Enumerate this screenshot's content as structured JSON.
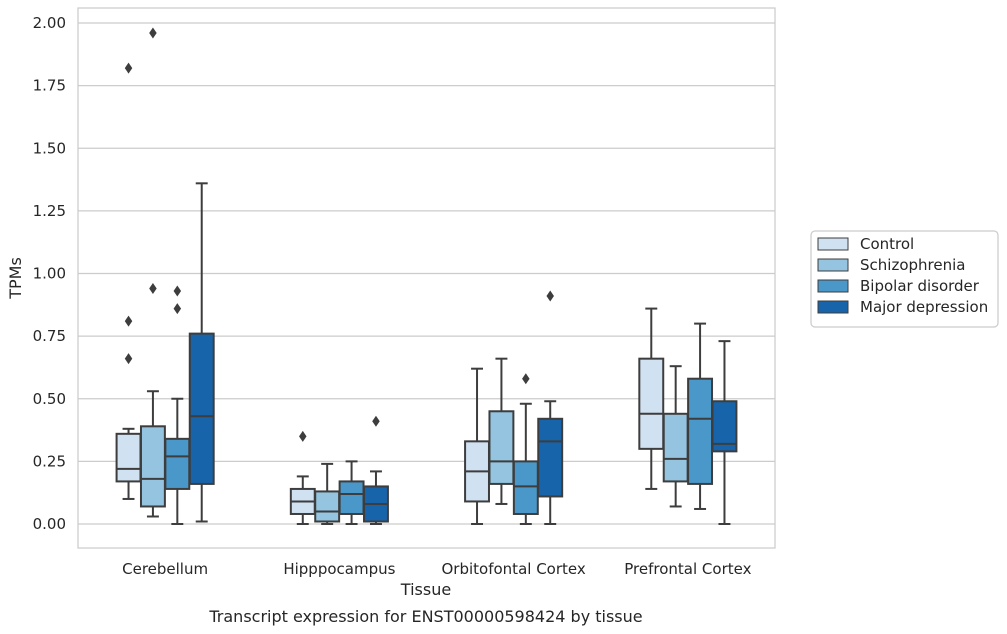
{
  "chart_data": {
    "type": "box",
    "title": "",
    "caption": "Transcript expression for ENST00000598424 by tissue",
    "xlabel": "Tissue",
    "ylabel": "TPMs",
    "ylim": [
      -0.095,
      2.06
    ],
    "yticks": [
      0.0,
      0.25,
      0.5,
      0.75,
      1.0,
      1.25,
      1.5,
      1.75,
      2.0
    ],
    "ytick_labels": [
      "0.00",
      "0.25",
      "0.50",
      "0.75",
      "1.00",
      "1.25",
      "1.50",
      "1.75",
      "2.00"
    ],
    "grid": true,
    "legend_position": "right",
    "categories": [
      "Cerebellum",
      "Hipppocampus",
      "Orbitofontal Cortex",
      "Prefrontal Cortex"
    ],
    "series": [
      {
        "name": "Control",
        "color": "#d0e1f2",
        "boxes": [
          {
            "whislo": 0.1,
            "q1": 0.17,
            "med": 0.22,
            "q3": 0.36,
            "whishi": 0.38,
            "fliers": [
              0.66,
              0.81,
              1.82
            ]
          },
          {
            "whislo": 0.0,
            "q1": 0.04,
            "med": 0.09,
            "q3": 0.14,
            "whishi": 0.19,
            "fliers": [
              0.35
            ]
          },
          {
            "whislo": 0.0,
            "q1": 0.09,
            "med": 0.21,
            "q3": 0.33,
            "whishi": 0.62,
            "fliers": []
          },
          {
            "whislo": 0.14,
            "q1": 0.3,
            "med": 0.44,
            "q3": 0.66,
            "whishi": 0.86,
            "fliers": []
          }
        ]
      },
      {
        "name": "Schizophrenia",
        "color": "#94c4df",
        "boxes": [
          {
            "whislo": 0.03,
            "q1": 0.07,
            "med": 0.18,
            "q3": 0.39,
            "whishi": 0.53,
            "fliers": [
              0.94,
              1.96
            ]
          },
          {
            "whislo": 0.0,
            "q1": 0.01,
            "med": 0.05,
            "q3": 0.13,
            "whishi": 0.24,
            "fliers": []
          },
          {
            "whislo": 0.08,
            "q1": 0.16,
            "med": 0.25,
            "q3": 0.45,
            "whishi": 0.66,
            "fliers": []
          },
          {
            "whislo": 0.07,
            "q1": 0.17,
            "med": 0.26,
            "q3": 0.44,
            "whishi": 0.63,
            "fliers": []
          }
        ]
      },
      {
        "name": "Bipolar disorder",
        "color": "#4a98c9",
        "boxes": [
          {
            "whislo": 0.0,
            "q1": 0.14,
            "med": 0.27,
            "q3": 0.34,
            "whishi": 0.5,
            "fliers": [
              0.86,
              0.93
            ]
          },
          {
            "whislo": 0.0,
            "q1": 0.04,
            "med": 0.12,
            "q3": 0.17,
            "whishi": 0.25,
            "fliers": []
          },
          {
            "whislo": 0.0,
            "q1": 0.04,
            "med": 0.15,
            "q3": 0.25,
            "whishi": 0.48,
            "fliers": [
              0.58
            ]
          },
          {
            "whislo": 0.06,
            "q1": 0.16,
            "med": 0.42,
            "q3": 0.58,
            "whishi": 0.8,
            "fliers": []
          }
        ]
      },
      {
        "name": "Major depression",
        "color": "#1764ab",
        "boxes": [
          {
            "whislo": 0.01,
            "q1": 0.16,
            "med": 0.43,
            "q3": 0.76,
            "whishi": 1.36,
            "fliers": []
          },
          {
            "whislo": 0.0,
            "q1": 0.01,
            "med": 0.08,
            "q3": 0.15,
            "whishi": 0.21,
            "fliers": [
              0.41
            ]
          },
          {
            "whislo": 0.0,
            "q1": 0.11,
            "med": 0.33,
            "q3": 0.42,
            "whishi": 0.49,
            "fliers": [
              0.91
            ]
          },
          {
            "whislo": 0.0,
            "q1": 0.29,
            "med": 0.32,
            "q3": 0.49,
            "whishi": 0.73,
            "fliers": []
          }
        ]
      }
    ]
  }
}
